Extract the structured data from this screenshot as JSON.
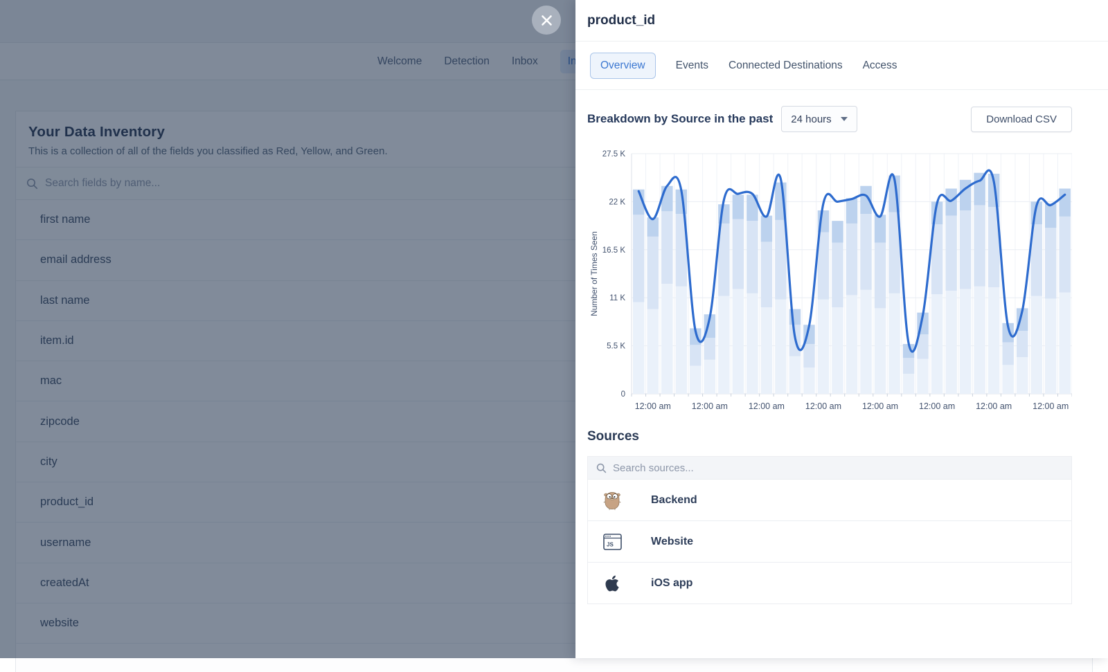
{
  "background_page": {
    "nav": {
      "items": [
        "Welcome",
        "Detection",
        "Inbox",
        "Inventory"
      ],
      "active": "Inventory"
    },
    "title": "Your Data Inventory",
    "subtitle": "This is a collection of all of the fields you classified as Red, Yellow, and Green.",
    "search_placeholder": "Search fields by name...",
    "fields": [
      "first name",
      "email address",
      "last name",
      "item.id",
      "mac",
      "zipcode",
      "city",
      "product_id",
      "username",
      "createdAt",
      "website"
    ]
  },
  "panel": {
    "title": "product_id",
    "tabs": [
      {
        "label": "Overview",
        "active": true
      },
      {
        "label": "Events",
        "active": false
      },
      {
        "label": "Connected Destinations",
        "active": false
      },
      {
        "label": "Access",
        "active": false
      }
    ],
    "chart_header": {
      "title": "Breakdown by Source in the past",
      "range_value": "24 hours",
      "download_label": "Download CSV"
    },
    "sources": {
      "heading": "Sources",
      "search_placeholder": "Search sources...",
      "items": [
        {
          "name": "Backend",
          "icon": "gopher-icon"
        },
        {
          "name": "Website",
          "icon": "js-browser-icon"
        },
        {
          "name": "iOS app",
          "icon": "apple-icon"
        }
      ]
    }
  },
  "colors": {
    "accent_blue": "#3B77D1",
    "line_blue": "#2D6BCE",
    "bar_light": "#EAF1FA",
    "bar_mid": "#D8E4F5",
    "bar_dark": "#BCD2EE"
  },
  "chart_data": {
    "type": "bar",
    "subtype": "stacked-bars-with-line-overlay",
    "title": "Breakdown by Source in the past 24 hours",
    "xlabel": "",
    "ylabel": "Number of Times Seen",
    "ylim": [
      0,
      27500
    ],
    "grid": true,
    "legend_position": "none",
    "yticks": [
      {
        "label": "0",
        "value": 0
      },
      {
        "label": "5.5 K",
        "value": 5500
      },
      {
        "label": "11 K",
        "value": 11000
      },
      {
        "label": "16.5 K",
        "value": 16500
      },
      {
        "label": "22 K",
        "value": 22000
      },
      {
        "label": "27.5 K",
        "value": 27500
      }
    ],
    "x_axis": {
      "tick_label": "12:00 am",
      "tick_indices": [
        1,
        5,
        9,
        13,
        17,
        21,
        25,
        29
      ],
      "slots": 31
    },
    "series": [
      {
        "name": "Backend",
        "color": "#EAF1FA",
        "values": [
          10500,
          9700,
          12600,
          12300,
          3200,
          3900,
          11200,
          12000,
          11500,
          9900,
          10800,
          4300,
          3000,
          10800,
          9900,
          11300,
          11900,
          9800,
          11500,
          2300,
          4000,
          11400,
          11800,
          12000,
          12300,
          12200,
          3300,
          4200,
          11200,
          10900,
          11600
        ]
      },
      {
        "name": "Website",
        "color": "#D8E4F5",
        "values": [
          10000,
          8300,
          8300,
          8300,
          2400,
          2500,
          8300,
          8000,
          8300,
          7500,
          9100,
          3600,
          2700,
          7700,
          7400,
          8200,
          8700,
          7500,
          9300,
          1800,
          2800,
          8000,
          8600,
          9000,
          9300,
          9200,
          2600,
          3000,
          8200,
          8100,
          8700
        ]
      },
      {
        "name": "iOS app",
        "color": "#BCD2EE",
        "values": [
          2900,
          2200,
          2900,
          2800,
          1900,
          2700,
          2200,
          2800,
          3000,
          3000,
          4300,
          1800,
          2200,
          2500,
          2500,
          2900,
          3200,
          3200,
          4200,
          1600,
          2500,
          2600,
          3100,
          3500,
          3700,
          3800,
          2200,
          2600,
          2600,
          2800,
          3200
        ]
      }
    ],
    "line_series": {
      "name": "Number of Times Seen",
      "color": "#2D6BCE",
      "values": [
        23200,
        20000,
        23800,
        23300,
        7200,
        8700,
        22200,
        22900,
        22900,
        20300,
        24600,
        6500,
        7800,
        21800,
        22000,
        22300,
        22700,
        20300,
        24600,
        5800,
        9000,
        21800,
        22100,
        23500,
        24400,
        24300,
        7700,
        9500,
        21500,
        21600,
        22800
      ]
    }
  }
}
